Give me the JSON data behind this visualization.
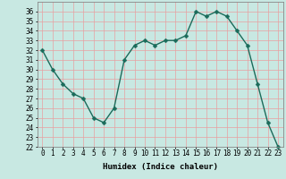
{
  "x": [
    0,
    1,
    2,
    3,
    4,
    5,
    6,
    7,
    8,
    9,
    10,
    11,
    12,
    13,
    14,
    15,
    16,
    17,
    18,
    19,
    20,
    21,
    22,
    23
  ],
  "y": [
    32,
    30,
    28.5,
    27.5,
    27,
    25,
    24.5,
    26,
    31,
    32.5,
    33,
    32.5,
    33,
    33,
    33.5,
    36,
    35.5,
    36,
    35.5,
    34,
    32.5,
    28.5,
    24.5,
    22
  ],
  "line_color": "#1a6b5a",
  "marker": "D",
  "marker_size": 2.5,
  "bg_color": "#c8e8e2",
  "grid_color_v": "#e8a0a0",
  "grid_color_h": "#e8a0a0",
  "xlabel": "Humidex (Indice chaleur)",
  "xlim": [
    -0.5,
    23.5
  ],
  "ylim": [
    22,
    37
  ],
  "yticks": [
    22,
    23,
    24,
    25,
    26,
    27,
    28,
    29,
    30,
    31,
    32,
    33,
    34,
    35,
    36
  ],
  "xticks": [
    0,
    1,
    2,
    3,
    4,
    5,
    6,
    7,
    8,
    9,
    10,
    11,
    12,
    13,
    14,
    15,
    16,
    17,
    18,
    19,
    20,
    21,
    22,
    23
  ],
  "xlabel_fontsize": 6.5,
  "tick_fontsize": 5.5,
  "line_width": 1.0
}
